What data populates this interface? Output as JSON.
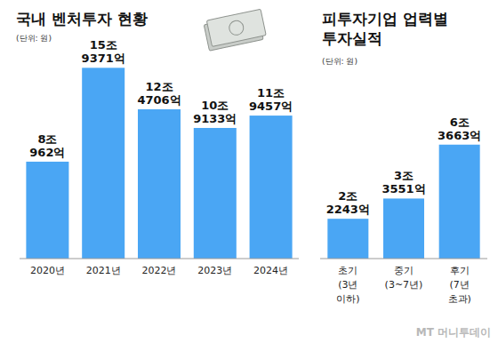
{
  "chart_data": [
    {
      "type": "bar",
      "title": "국내 벤처투자 현황",
      "subtitle": "(단위: 원)",
      "categories": [
        "2020년",
        "2021년",
        "2022년",
        "2023년",
        "2024년"
      ],
      "values": [
        80962,
        159371,
        124706,
        109133,
        119457
      ],
      "value_labels": [
        "8조 962억",
        "15조 9371억",
        "12조 4706억",
        "10조 9133억",
        "11조 9457억"
      ],
      "color": "#4aa6f4",
      "ylim": [
        0,
        170000
      ],
      "yticks": [],
      "grid": false,
      "data_labels": true,
      "tick_labels": "x"
    },
    {
      "type": "bar",
      "title": "피투자기업 업력별 투자실적",
      "subtitle": "(단위: 원)",
      "categories": [
        "초기 (3년 이하)",
        "중기 (3~7년)",
        "후기 (7년 초과)"
      ],
      "values": [
        22243,
        33551,
        63663
      ],
      "value_labels": [
        "2조 2243억",
        "3조 3551억",
        "6조 3663억"
      ],
      "color": "#4aa6f4",
      "ylim": [
        0,
        70000
      ],
      "yticks": [],
      "grid": false,
      "data_labels": true,
      "tick_labels": "x"
    }
  ],
  "watermark": "MT 머니투데이"
}
